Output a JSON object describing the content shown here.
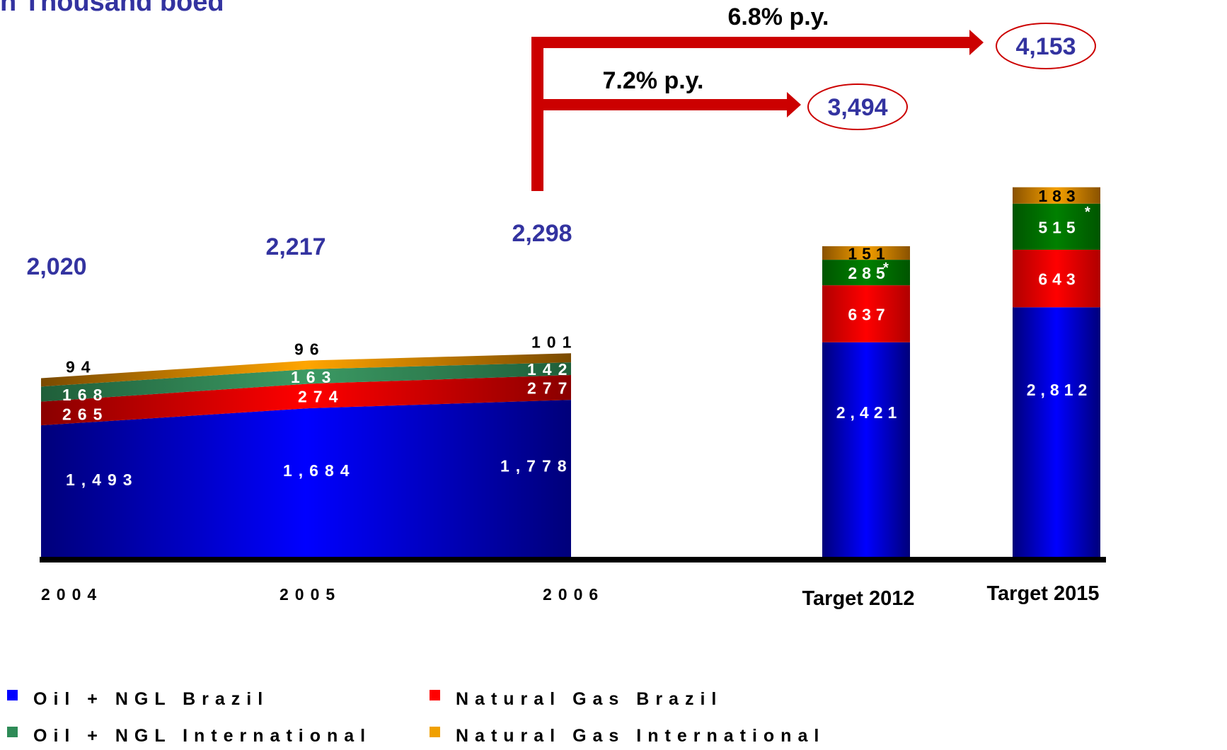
{
  "subtitle": "n Thousand boed",
  "chart_data": {
    "type": "area",
    "unit": "Thousand boed",
    "categories": [
      "2004",
      "2005",
      "2006",
      "Target 2012",
      "Target 2015"
    ],
    "historical": {
      "x": [
        "2004",
        "2005",
        "2006"
      ],
      "series": [
        {
          "key": "oil_brazil",
          "values": [
            1493,
            1684,
            1778
          ],
          "labels": [
            "1,493",
            "1,684",
            "1,778"
          ]
        },
        {
          "key": "gas_brazil",
          "values": [
            265,
            274,
            277
          ],
          "labels": [
            "265",
            "274",
            "277"
          ]
        },
        {
          "key": "oil_intl",
          "values": [
            168,
            163,
            142
          ],
          "labels": [
            "168",
            "163",
            "142"
          ]
        },
        {
          "key": "gas_intl",
          "values": [
            94,
            96,
            101
          ],
          "labels": [
            "94",
            "96",
            "101"
          ]
        }
      ],
      "totals": [
        2020,
        2217,
        2298
      ],
      "total_labels": [
        "2,020",
        "2,217",
        "2,298"
      ]
    },
    "targets": {
      "x": [
        "Target 2012",
        "Target 2015"
      ],
      "series": [
        {
          "key": "oil_brazil",
          "values": [
            2421,
            2812
          ],
          "labels": [
            "2,421",
            "2,812"
          ]
        },
        {
          "key": "gas_brazil",
          "values": [
            637,
            643
          ],
          "labels": [
            "637",
            "643"
          ]
        },
        {
          "key": "oil_intl",
          "values": [
            285,
            515
          ],
          "labels": [
            "285",
            "515"
          ]
        },
        {
          "key": "gas_intl",
          "values": [
            151,
            183
          ],
          "labels": [
            "151",
            "183"
          ]
        }
      ],
      "totals": [
        3494,
        4153
      ],
      "total_labels": [
        "3,494",
        "4,153"
      ],
      "asterisk_on": "oil_intl",
      "asterisk": "*"
    },
    "growth_annotations": [
      {
        "label": "7.2% p.y.",
        "target": "Target 2012"
      },
      {
        "label": "6.8% p.y.",
        "target": "Target 2015"
      }
    ],
    "legend": [
      {
        "key": "oil_brazil",
        "label": "Oil + NGL Brazil",
        "color": "#0000ff"
      },
      {
        "key": "gas_brazil",
        "label": "Natural Gas Brazil",
        "color": "#ff0000"
      },
      {
        "key": "oil_intl",
        "label": "Oil + NGL International",
        "color": "#2e8b57"
      },
      {
        "key": "gas_intl",
        "label": "Natural Gas International",
        "color": "#f0a000"
      }
    ],
    "colors": {
      "total_label": "#3333a0",
      "arrow": "#cc0000",
      "axis": "#000000"
    }
  }
}
